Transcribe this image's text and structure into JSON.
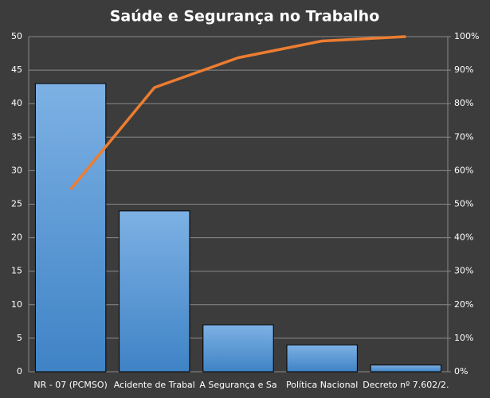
{
  "chart_data": {
    "type": "bar",
    "title": "Saúde  e  Segurança  no  Trabalho",
    "categories": [
      "NR - 07 (PCMSO)",
      "Acidente de Trabal",
      "A Segurança e Sa",
      "Política Nacional",
      "Decreto nº 7.602/2."
    ],
    "series": [
      {
        "type": "bar",
        "color": "#5b9bd5",
        "values": [
          43,
          24,
          7,
          4,
          1
        ]
      },
      {
        "type": "line",
        "axis": "y2",
        "color": "#ed7d31",
        "values": [
          54.4,
          84.8,
          93.7,
          98.7,
          100
        ]
      }
    ],
    "ylim": [
      0,
      50
    ],
    "yticks": [
      0,
      5,
      10,
      15,
      20,
      25,
      30,
      35,
      40,
      45,
      50
    ],
    "y2lim": [
      0,
      100
    ],
    "y2ticks": [
      {
        "value": 0,
        "label": "0%"
      },
      {
        "value": 10,
        "label": "10%"
      },
      {
        "value": 20,
        "label": "20%"
      },
      {
        "value": 30,
        "label": "30%"
      },
      {
        "value": 40,
        "label": "40%"
      },
      {
        "value": 50,
        "label": "50%"
      },
      {
        "value": 60,
        "label": "60%"
      },
      {
        "value": 70,
        "label": "70%"
      },
      {
        "value": 80,
        "label": "80%"
      },
      {
        "value": 90,
        "label": "90%"
      },
      {
        "value": 100,
        "label": "100%"
      }
    ],
    "grid": true
  }
}
